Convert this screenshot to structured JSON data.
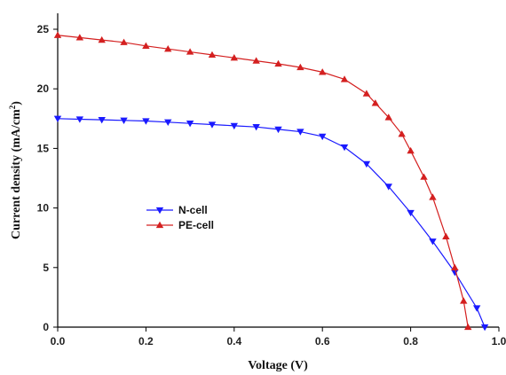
{
  "chart_data": {
    "type": "line",
    "title": "",
    "xlabel": "Voltage (V)",
    "ylabel_main": "Current density (mA/cm",
    "ylabel_sup": "2",
    "ylabel_close": ")",
    "xlim": [
      0.0,
      1.0
    ],
    "ylim": [
      0,
      26
    ],
    "x_ticks": [
      0.0,
      0.2,
      0.4,
      0.6,
      0.8,
      1.0
    ],
    "x_tick_labels": [
      "0.0",
      "0.2",
      "0.4",
      "0.6",
      "0.8",
      "1.0"
    ],
    "y_ticks": [
      0,
      5,
      10,
      15,
      20,
      25
    ],
    "y_tick_labels": [
      "0",
      "5",
      "10",
      "15",
      "20",
      "25"
    ],
    "grid": false,
    "legend_placement": "center-left",
    "series": [
      {
        "name": "N-cell",
        "color": "#1a1aff",
        "marker": "triangle-down",
        "x": [
          0.0,
          0.05,
          0.1,
          0.15,
          0.2,
          0.25,
          0.3,
          0.35,
          0.4,
          0.45,
          0.5,
          0.55,
          0.6,
          0.65,
          0.7,
          0.75,
          0.8,
          0.85,
          0.9,
          0.95,
          0.968
        ],
        "y": [
          17.5,
          17.45,
          17.4,
          17.35,
          17.3,
          17.2,
          17.1,
          17.0,
          16.9,
          16.8,
          16.6,
          16.4,
          16.0,
          15.1,
          13.7,
          11.8,
          9.6,
          7.2,
          4.6,
          1.6,
          0.0
        ]
      },
      {
        "name": "PE-cell",
        "color": "#d42020",
        "marker": "triangle-up",
        "x": [
          0.0,
          0.05,
          0.1,
          0.15,
          0.2,
          0.25,
          0.3,
          0.35,
          0.4,
          0.45,
          0.5,
          0.55,
          0.6,
          0.65,
          0.7,
          0.72,
          0.75,
          0.78,
          0.8,
          0.83,
          0.85,
          0.88,
          0.9,
          0.92,
          0.93
        ],
        "y": [
          24.5,
          24.3,
          24.1,
          23.9,
          23.6,
          23.35,
          23.1,
          22.85,
          22.6,
          22.35,
          22.1,
          21.8,
          21.4,
          20.8,
          19.6,
          18.8,
          17.6,
          16.2,
          14.8,
          12.6,
          10.9,
          7.6,
          5.0,
          2.2,
          0.0
        ]
      }
    ]
  }
}
